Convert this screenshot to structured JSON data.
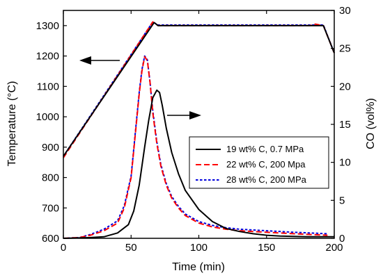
{
  "chart_data": {
    "type": "line",
    "xlabel": "Time (min)",
    "ylabel_left": "Temperature (°C)",
    "ylabel_right": "CO (vol%)",
    "xlim": [
      0,
      200
    ],
    "ylim_left": [
      600,
      1350
    ],
    "ylim_right": [
      0,
      30
    ],
    "xticks": [
      0,
      50,
      100,
      150,
      200
    ],
    "yticks_left": [
      600,
      700,
      800,
      900,
      1000,
      1100,
      1200,
      1300
    ],
    "yticks_right": [
      0,
      5,
      10,
      15,
      20,
      25,
      30
    ],
    "grid": false,
    "legend_position": "right-middle",
    "arrows": [
      {
        "points_to": "left axis"
      },
      {
        "points_to": "right axis"
      }
    ],
    "series": [
      {
        "name": "19 wt% C, 0.7 MPa",
        "color": "#000000",
        "dash": "solid",
        "temperature": {
          "x": [
            0,
            67,
            70,
            182,
            192,
            200
          ],
          "y": [
            870,
            1310,
            1300,
            1300,
            1300,
            1210
          ]
        },
        "co": {
          "x": [
            0,
            20,
            30,
            40,
            48,
            52,
            56,
            60,
            63,
            66,
            69,
            71,
            73,
            76,
            80,
            85,
            90,
            100,
            110,
            120,
            130,
            140,
            150,
            160,
            180,
            200
          ],
          "y": [
            0,
            0.1,
            0.2,
            0.7,
            1.8,
            3.6,
            7,
            12,
            15.5,
            18.5,
            19.5,
            19.2,
            17.5,
            14.5,
            11.3,
            8.5,
            6.3,
            3.8,
            2.2,
            1.3,
            0.9,
            0.6,
            0.4,
            0.3,
            0.2,
            0.2
          ]
        }
      },
      {
        "name": "22 wt% C, 200 Mpa",
        "color": "#ff0000",
        "dash": "long",
        "temperature": {
          "x": [
            0,
            66,
            70,
            182,
            186,
            192,
            200
          ],
          "y": [
            865,
            1312,
            1300,
            1300,
            1305,
            1300,
            1210
          ]
        },
        "co": {
          "x": [
            0,
            12,
            20,
            30,
            40,
            45,
            50,
            53,
            56,
            58,
            60,
            62,
            64,
            66,
            69,
            72,
            76,
            80,
            85,
            90,
            100,
            110,
            120,
            130,
            150,
            170,
            195
          ],
          "y": [
            0,
            0.1,
            0.4,
            1.0,
            2.0,
            4.0,
            8.0,
            13.5,
            19,
            22,
            23.9,
            23.4,
            20.5,
            16.5,
            12.5,
            9.5,
            7.0,
            5.3,
            4.0,
            3.0,
            2.0,
            1.5,
            1.2,
            1.0,
            0.8,
            0.6,
            0.4
          ]
        }
      },
      {
        "name": "28 wt% C, 200 MPa",
        "color": "#0000dd",
        "dash": "short",
        "temperature": {
          "x": [
            0,
            66,
            70,
            182,
            192,
            200
          ],
          "y": [
            870,
            1312,
            1302,
            1302,
            1302,
            1210
          ]
        },
        "co": {
          "x": [
            0,
            12,
            20,
            30,
            40,
            45,
            50,
            53,
            56,
            58,
            60,
            62,
            64,
            66,
            69,
            72,
            76,
            80,
            85,
            90,
            100,
            110,
            120,
            130,
            150,
            170,
            195
          ],
          "y": [
            0,
            0.1,
            0.5,
            1.2,
            2.3,
            4.3,
            8.2,
            13.7,
            19.2,
            22.2,
            24.0,
            23.5,
            20.5,
            16.8,
            12.7,
            9.7,
            7.2,
            5.5,
            4.2,
            3.2,
            2.2,
            1.7,
            1.4,
            1.2,
            1.0,
            0.8,
            0.6
          ]
        }
      }
    ]
  }
}
